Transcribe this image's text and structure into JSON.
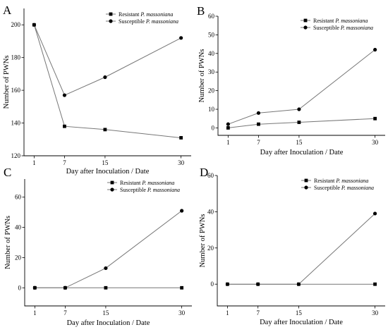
{
  "figure": {
    "panels": [
      "A",
      "B",
      "C",
      "D"
    ]
  },
  "chart_data": [
    {
      "panel": "A",
      "type": "line",
      "x": [
        1,
        7,
        15,
        30
      ],
      "xticks": [
        "1",
        "7",
        "15",
        "30"
      ],
      "xlabel": "Day after Inoculation / Date",
      "ylabel": "Number of PWNs",
      "ylim": [
        120,
        210
      ],
      "yticks": [
        120,
        140,
        160,
        180,
        200
      ],
      "legend_position": "top-right",
      "series": [
        {
          "name": "Resistant P. massoniana",
          "name_prefix": "Resistant ",
          "name_species": "P. massoniana",
          "marker": "square",
          "values": [
            200,
            138,
            136,
            131
          ]
        },
        {
          "name": "Susceptible P. massoniana",
          "name_prefix": "Susceptible ",
          "name_species": "P. massoniana",
          "marker": "circle",
          "values": [
            200,
            157,
            168,
            192
          ]
        }
      ]
    },
    {
      "panel": "B",
      "type": "line",
      "x": [
        1,
        7,
        15,
        30
      ],
      "xticks": [
        "1",
        "7",
        "15",
        "30"
      ],
      "xlabel": "Day after Inoculation / Date",
      "ylabel": "Number of PWNs",
      "ylim": [
        -4,
        60
      ],
      "yticks": [
        0,
        10,
        20,
        30,
        40,
        50,
        60
      ],
      "legend_position": "top-right",
      "series": [
        {
          "name": "Resistant P. massoniana",
          "name_prefix": "Resistant ",
          "name_species": "P. massoniana",
          "marker": "square",
          "values": [
            0,
            2,
            3,
            5
          ]
        },
        {
          "name": "Susceptible P. massoniana",
          "name_prefix": "Susceptible ",
          "name_species": "P. massoniana",
          "marker": "circle",
          "values": [
            2,
            8,
            10,
            42
          ]
        }
      ]
    },
    {
      "panel": "C",
      "type": "line",
      "x": [
        1,
        7,
        15,
        30
      ],
      "xticks": [
        "1",
        "7",
        "15",
        "30"
      ],
      "xlabel": "Day after Inoculation / Date",
      "ylabel": "Number of PWNs",
      "ylim": [
        -12,
        72
      ],
      "yticks": [
        0,
        20,
        40,
        60
      ],
      "legend_position": "top-right",
      "series": [
        {
          "name": "Resistant P. massoniana",
          "name_prefix": "Resistant ",
          "name_species": "P. massoniana",
          "marker": "square",
          "values": [
            0,
            0,
            0,
            0
          ]
        },
        {
          "name": "Susceptible P. massoniana",
          "name_prefix": "Susceptible ",
          "name_species": "P. massoniana",
          "marker": "circle",
          "values": [
            0,
            0,
            13,
            51
          ]
        }
      ]
    },
    {
      "panel": "D",
      "type": "line",
      "x": [
        1,
        7,
        15,
        30
      ],
      "xticks": [
        "1",
        "7",
        "15",
        "30"
      ],
      "xlabel": "Day after Inoculation / Date",
      "ylabel": "Number of PWNs",
      "ylim": [
        -12,
        60
      ],
      "yticks": [
        0,
        20,
        40,
        60
      ],
      "legend_position": "top-right",
      "series": [
        {
          "name": "Resistant P. massoniana",
          "name_prefix": "Resistant ",
          "name_species": "P. massoniana",
          "marker": "square",
          "values": [
            0,
            0,
            0,
            0
          ]
        },
        {
          "name": "Susceptible P. massoniana",
          "name_prefix": "Susceptible ",
          "name_species": "P. massoniana",
          "marker": "circle",
          "values": [
            0,
            0,
            0,
            39
          ]
        }
      ]
    }
  ]
}
